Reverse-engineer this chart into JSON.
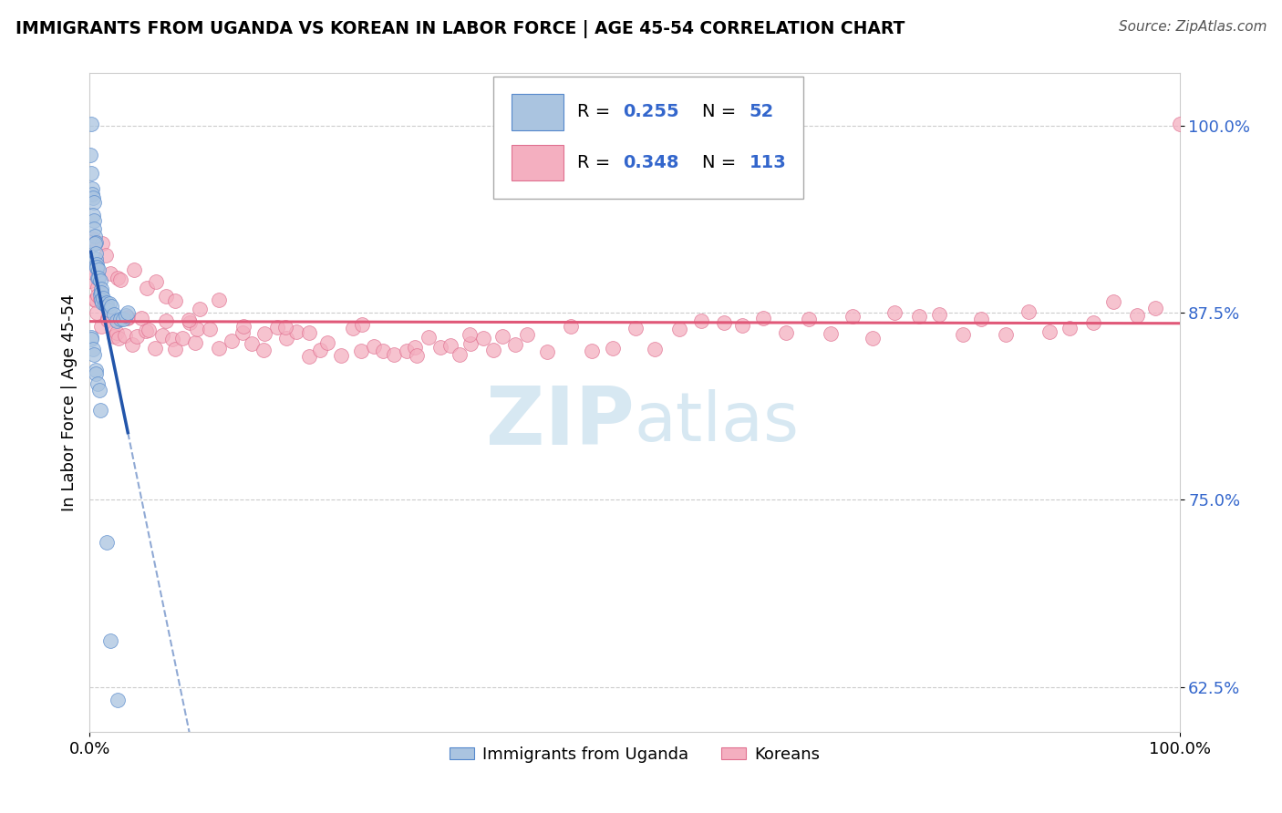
{
  "title": "IMMIGRANTS FROM UGANDA VS KOREAN IN LABOR FORCE | AGE 45-54 CORRELATION CHART",
  "source": "Source: ZipAtlas.com",
  "ylabel": "In Labor Force | Age 45-54",
  "xlim": [
    0.0,
    1.0
  ],
  "ylim": [
    0.595,
    1.035
  ],
  "x_ticks": [
    0.0,
    1.0
  ],
  "x_tick_labels": [
    "0.0%",
    "100.0%"
  ],
  "y_ticks": [
    0.625,
    0.75,
    0.875,
    1.0
  ],
  "y_tick_labels": [
    "62.5%",
    "75.0%",
    "87.5%",
    "100.0%"
  ],
  "blue_color": "#aac4e0",
  "blue_edge_color": "#5588cc",
  "blue_line_color": "#2255aa",
  "pink_color": "#f4afc0",
  "pink_edge_color": "#e07090",
  "pink_line_color": "#e05878",
  "r_n_color": "#3366cc",
  "watermark_color": "#d0e4f0",
  "uganda_x": [
    0.001,
    0.001,
    0.002,
    0.002,
    0.002,
    0.003,
    0.003,
    0.003,
    0.004,
    0.004,
    0.005,
    0.005,
    0.005,
    0.006,
    0.006,
    0.006,
    0.007,
    0.007,
    0.007,
    0.008,
    0.008,
    0.009,
    0.009,
    0.01,
    0.01,
    0.011,
    0.012,
    0.013,
    0.014,
    0.015,
    0.016,
    0.017,
    0.018,
    0.02,
    0.022,
    0.025,
    0.028,
    0.03,
    0.032,
    0.035,
    0.001,
    0.002,
    0.003,
    0.004,
    0.005,
    0.006,
    0.007,
    0.008,
    0.01,
    0.015,
    0.02,
    0.025
  ],
  "uganda_y": [
    1.0,
    0.98,
    0.97,
    0.96,
    0.955,
    0.95,
    0.945,
    0.94,
    0.935,
    0.93,
    0.925,
    0.92,
    0.918,
    0.915,
    0.912,
    0.91,
    0.908,
    0.905,
    0.902,
    0.9,
    0.897,
    0.894,
    0.892,
    0.89,
    0.888,
    0.887,
    0.885,
    0.883,
    0.882,
    0.88,
    0.879,
    0.878,
    0.877,
    0.876,
    0.875,
    0.874,
    0.873,
    0.872,
    0.871,
    0.87,
    0.86,
    0.855,
    0.85,
    0.845,
    0.84,
    0.835,
    0.83,
    0.825,
    0.81,
    0.72,
    0.66,
    0.62
  ],
  "korea_x": [
    0.001,
    0.002,
    0.003,
    0.005,
    0.006,
    0.007,
    0.008,
    0.01,
    0.012,
    0.015,
    0.017,
    0.02,
    0.022,
    0.025,
    0.028,
    0.03,
    0.033,
    0.036,
    0.04,
    0.043,
    0.046,
    0.05,
    0.055,
    0.06,
    0.065,
    0.07,
    0.075,
    0.08,
    0.085,
    0.09,
    0.095,
    0.1,
    0.11,
    0.12,
    0.13,
    0.14,
    0.15,
    0.16,
    0.17,
    0.18,
    0.19,
    0.2,
    0.21,
    0.22,
    0.23,
    0.24,
    0.25,
    0.26,
    0.27,
    0.28,
    0.29,
    0.3,
    0.31,
    0.32,
    0.33,
    0.34,
    0.35,
    0.36,
    0.37,
    0.38,
    0.39,
    0.4,
    0.42,
    0.44,
    0.46,
    0.48,
    0.5,
    0.52,
    0.54,
    0.56,
    0.58,
    0.6,
    0.62,
    0.64,
    0.66,
    0.68,
    0.7,
    0.72,
    0.74,
    0.76,
    0.78,
    0.8,
    0.82,
    0.84,
    0.86,
    0.88,
    0.9,
    0.92,
    0.94,
    0.96,
    0.98,
    1.0,
    0.005,
    0.01,
    0.015,
    0.02,
    0.025,
    0.03,
    0.04,
    0.05,
    0.06,
    0.07,
    0.08,
    0.09,
    0.1,
    0.12,
    0.14,
    0.16,
    0.18,
    0.2,
    0.25,
    0.3,
    0.35
  ],
  "korea_y": [
    0.9,
    0.895,
    0.89,
    0.885,
    0.882,
    0.88,
    0.878,
    0.876,
    0.874,
    0.872,
    0.87,
    0.869,
    0.868,
    0.867,
    0.866,
    0.865,
    0.865,
    0.864,
    0.863,
    0.863,
    0.862,
    0.862,
    0.861,
    0.861,
    0.86,
    0.86,
    0.86,
    0.859,
    0.859,
    0.859,
    0.858,
    0.858,
    0.858,
    0.857,
    0.857,
    0.857,
    0.856,
    0.856,
    0.856,
    0.855,
    0.855,
    0.855,
    0.855,
    0.855,
    0.855,
    0.855,
    0.855,
    0.855,
    0.855,
    0.855,
    0.855,
    0.856,
    0.856,
    0.856,
    0.856,
    0.857,
    0.857,
    0.857,
    0.857,
    0.857,
    0.858,
    0.858,
    0.858,
    0.858,
    0.859,
    0.859,
    0.859,
    0.86,
    0.86,
    0.86,
    0.861,
    0.862,
    0.862,
    0.863,
    0.863,
    0.864,
    0.864,
    0.865,
    0.866,
    0.866,
    0.867,
    0.868,
    0.869,
    0.87,
    0.871,
    0.872,
    0.873,
    0.874,
    0.875,
    0.876,
    0.877,
    1.0,
    0.93,
    0.92,
    0.91,
    0.905,
    0.9,
    0.898,
    0.895,
    0.89,
    0.887,
    0.885,
    0.883,
    0.88,
    0.878,
    0.875,
    0.872,
    0.87,
    0.867,
    0.864,
    0.86,
    0.856,
    0.852
  ]
}
